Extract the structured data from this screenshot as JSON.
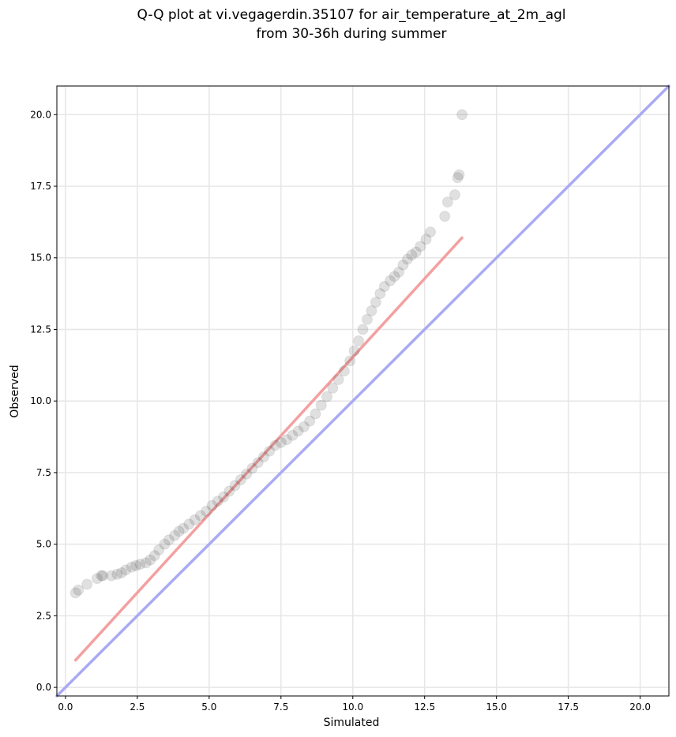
{
  "chart_data": {
    "type": "scatter",
    "title_line1": "Q-Q plot at vi.vegagerdin.35107 for air_temperature_at_2m_agl",
    "title_line2": "from 30-36h during summer",
    "xlabel": "Simulated",
    "ylabel": "Observed",
    "xlim": [
      -0.3,
      21.0
    ],
    "ylim": [
      -0.3,
      21.0
    ],
    "grid": true,
    "x_ticks": [
      "0.0",
      "2.5",
      "5.0",
      "7.5",
      "10.0",
      "12.5",
      "15.0",
      "17.5",
      "20.0"
    ],
    "y_ticks": [
      "0.0",
      "2.5",
      "5.0",
      "7.5",
      "10.0",
      "12.5",
      "15.0",
      "17.5",
      "20.0"
    ],
    "quantile_points": {
      "x": [
        0.35,
        0.45,
        0.75,
        1.1,
        1.25,
        1.3,
        1.6,
        1.8,
        1.95,
        2.1,
        2.3,
        2.45,
        2.6,
        2.8,
        2.95,
        3.1,
        3.25,
        3.45,
        3.6,
        3.8,
        3.95,
        4.1,
        4.3,
        4.5,
        4.7,
        4.9,
        5.1,
        5.3,
        5.5,
        5.7,
        5.9,
        6.1,
        6.3,
        6.5,
        6.7,
        6.9,
        7.1,
        7.3,
        7.5,
        7.7,
        7.9,
        8.1,
        8.3,
        8.5,
        8.7,
        8.9,
        9.1,
        9.3,
        9.5,
        9.7,
        9.9,
        10.05,
        10.2,
        10.35,
        10.5,
        10.65,
        10.8,
        10.95,
        11.1,
        11.3,
        11.45,
        11.6,
        11.75,
        11.9,
        12.05,
        12.2,
        12.35,
        12.55,
        12.7,
        13.2,
        13.3,
        13.55,
        13.65,
        13.7,
        13.8
      ],
      "y": [
        3.3,
        3.4,
        3.6,
        3.8,
        3.9,
        3.9,
        3.9,
        3.95,
        4.0,
        4.1,
        4.2,
        4.25,
        4.3,
        4.35,
        4.45,
        4.6,
        4.8,
        5.0,
        5.15,
        5.3,
        5.45,
        5.55,
        5.7,
        5.85,
        6.0,
        6.15,
        6.35,
        6.5,
        6.65,
        6.85,
        7.05,
        7.25,
        7.45,
        7.65,
        7.85,
        8.05,
        8.25,
        8.45,
        8.55,
        8.65,
        8.8,
        8.95,
        9.1,
        9.3,
        9.55,
        9.85,
        10.15,
        10.45,
        10.75,
        11.05,
        11.4,
        11.75,
        12.1,
        12.5,
        12.85,
        13.15,
        13.45,
        13.75,
        14.0,
        14.2,
        14.35,
        14.5,
        14.75,
        14.95,
        15.1,
        15.2,
        15.4,
        15.65,
        15.9,
        16.45,
        16.95,
        17.2,
        17.8,
        17.9,
        20.0
      ]
    },
    "fit_line": {
      "x": [
        0.35,
        13.8
      ],
      "y": [
        0.95,
        15.7
      ],
      "color": "#f4a0a0"
    },
    "identity_line": {
      "x": [
        -0.3,
        21.0
      ],
      "y": [
        -0.3,
        21.0
      ],
      "color": "#aaaaf4"
    },
    "point_color": "#404040"
  }
}
